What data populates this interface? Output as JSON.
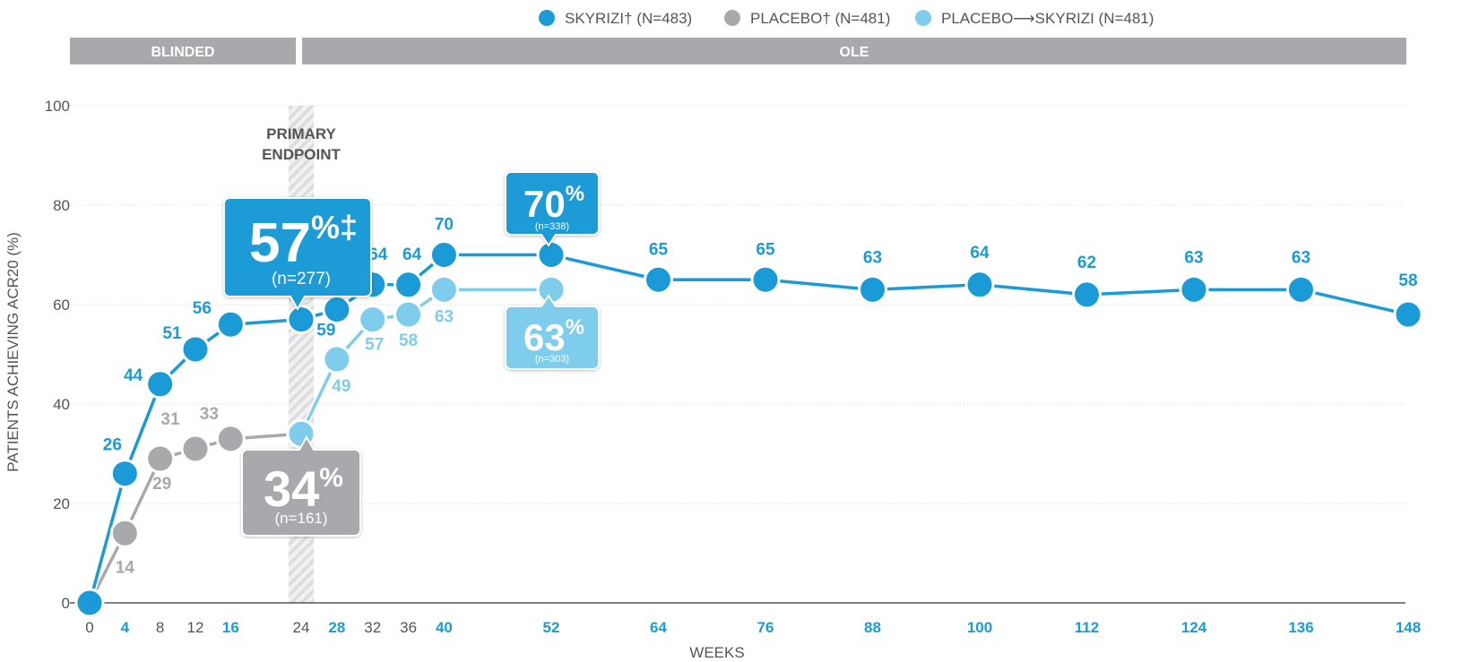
{
  "legend": [
    {
      "name": "SKYRIZI",
      "suffix": "† (N=483)",
      "color": "#1a9bd7"
    },
    {
      "name": "PLACEBO",
      "suffix": "† (N=481)",
      "color": "#a7a9ac"
    },
    {
      "name": "PLACEBO⟶SKYRIZI",
      "suffix": " (N=481)",
      "color": "#7fcdec"
    }
  ],
  "phases": {
    "blinded": "BLINDED",
    "ole": "OLE"
  },
  "annotation": {
    "line1": "PRIMARY",
    "line2": "ENDPOINT"
  },
  "callouts": {
    "skyrizi_w24": {
      "value": "57",
      "sup": "%‡",
      "n": "(n=277)"
    },
    "placebo_w24": {
      "value": "34",
      "sup": "%",
      "n": "(n=161)"
    },
    "skyrizi_w52": {
      "value": "70",
      "sup": "%",
      "n": "(n=338)"
    },
    "switch_w52": {
      "value": "63",
      "sup": "%",
      "n": "(n=303)"
    }
  },
  "chart_data": {
    "type": "line",
    "xlabel": "WEEKS",
    "ylabel": "PATIENTS ACHIEVING ACR20 (%)",
    "ylim": [
      0,
      100
    ],
    "yticks": [
      "0",
      "20",
      "40",
      "60",
      "80",
      "100"
    ],
    "xticks": [
      "0",
      "4",
      "8",
      "12",
      "16",
      "24",
      "28",
      "32",
      "36",
      "40",
      "52",
      "64",
      "76",
      "88",
      "100",
      "112",
      "124",
      "136",
      "148"
    ],
    "highlighted_xticks": [
      "4",
      "16",
      "28",
      "40",
      "52",
      "64",
      "76",
      "88",
      "100",
      "112",
      "124",
      "136",
      "148"
    ],
    "series": [
      {
        "name": "SKYRIZI (N=483)",
        "color": "#1a9bd7",
        "points": [
          {
            "x": 0,
            "y": 0,
            "label": ""
          },
          {
            "x": 4,
            "y": 26,
            "label": "26"
          },
          {
            "x": 8,
            "y": 44,
            "label": "44"
          },
          {
            "x": 12,
            "y": 51,
            "label": "51"
          },
          {
            "x": 16,
            "y": 56,
            "label": "56"
          },
          {
            "x": 24,
            "y": 57,
            "label": ""
          },
          {
            "x": 28,
            "y": 59,
            "label": "59"
          },
          {
            "x": 32,
            "y": 64,
            "label": "64"
          },
          {
            "x": 36,
            "y": 64,
            "label": "64"
          },
          {
            "x": 40,
            "y": 70,
            "label": "70"
          },
          {
            "x": 52,
            "y": 70,
            "label": ""
          },
          {
            "x": 64,
            "y": 65,
            "label": "65"
          },
          {
            "x": 76,
            "y": 65,
            "label": "65"
          },
          {
            "x": 88,
            "y": 63,
            "label": "63"
          },
          {
            "x": 100,
            "y": 64,
            "label": "64"
          },
          {
            "x": 112,
            "y": 62,
            "label": "62"
          },
          {
            "x": 124,
            "y": 63,
            "label": "63"
          },
          {
            "x": 136,
            "y": 63,
            "label": "63"
          },
          {
            "x": 148,
            "y": 58,
            "label": "58"
          }
        ]
      },
      {
        "name": "PLACEBO (N=481)",
        "color": "#a7a9ac",
        "points": [
          {
            "x": 0,
            "y": 0,
            "label": ""
          },
          {
            "x": 4,
            "y": 14,
            "label": "14"
          },
          {
            "x": 8,
            "y": 29,
            "label": "29"
          },
          {
            "x": 12,
            "y": 31,
            "label": "31"
          },
          {
            "x": 16,
            "y": 33,
            "label": "33"
          },
          {
            "x": 24,
            "y": 34,
            "label": ""
          }
        ]
      },
      {
        "name": "PLACEBO→SKYRIZI (N=481)",
        "color": "#7fcdec",
        "points": [
          {
            "x": 24,
            "y": 34,
            "label": ""
          },
          {
            "x": 28,
            "y": 49,
            "label": "49"
          },
          {
            "x": 32,
            "y": 57,
            "label": "57"
          },
          {
            "x": 36,
            "y": 58,
            "label": "58"
          },
          {
            "x": 40,
            "y": 63,
            "label": "63"
          },
          {
            "x": 52,
            "y": 63,
            "label": ""
          }
        ]
      }
    ]
  }
}
